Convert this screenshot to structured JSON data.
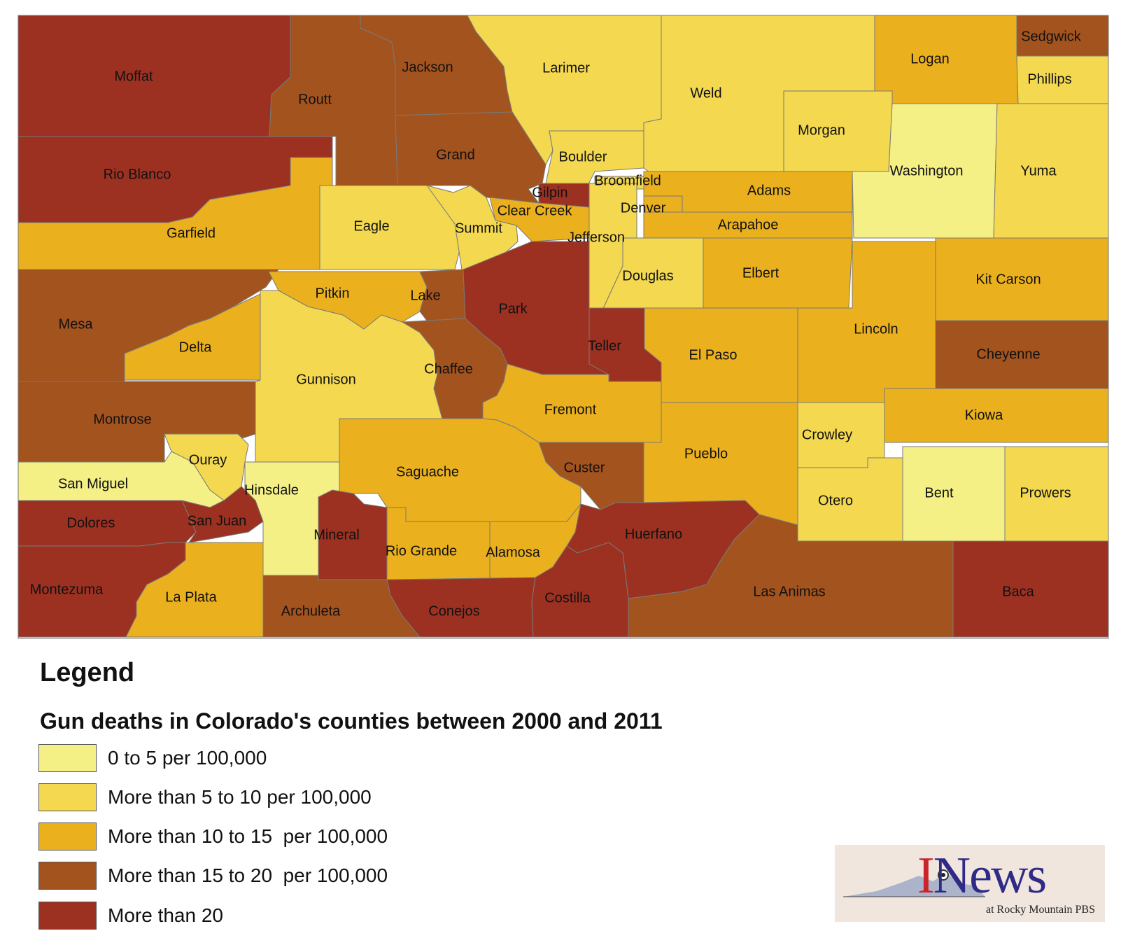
{
  "legend": {
    "heading": "Legend",
    "subtitle": "Gun deaths in Colorado's counties between 2000 and 2011",
    "categories": [
      {
        "label": "0 to 5 per 100,000",
        "color": "#f4f086"
      },
      {
        "label": "More than 5 to 10 per 100,000",
        "color": "#f3d850"
      },
      {
        "label": "More than 10 to 15  per 100,000",
        "color": "#ebb01d"
      },
      {
        "label": "More than 15 to 20  per 100,000",
        "color": "#a3531e"
      },
      {
        "label": "More than 20",
        "color": "#9c3122"
      }
    ]
  },
  "logo": {
    "main": "News",
    "initial": "I",
    "subtitle": "at Rocky Mountain PBS"
  },
  "counties": [
    {
      "name": "Moffat",
      "category": 4
    },
    {
      "name": "Routt",
      "category": 3
    },
    {
      "name": "Jackson",
      "category": 3
    },
    {
      "name": "Larimer",
      "category": 1
    },
    {
      "name": "Weld",
      "category": 1
    },
    {
      "name": "Logan",
      "category": 2
    },
    {
      "name": "Sedgwick",
      "category": 3
    },
    {
      "name": "Phillips",
      "category": 1
    },
    {
      "name": "Rio Blanco",
      "category": 4
    },
    {
      "name": "Grand",
      "category": 3
    },
    {
      "name": "Boulder",
      "category": 1
    },
    {
      "name": "Morgan",
      "category": 1
    },
    {
      "name": "Washington",
      "category": 0
    },
    {
      "name": "Yuma",
      "category": 1
    },
    {
      "name": "Broomfield",
      "category": 1
    },
    {
      "name": "Gilpin",
      "category": 4
    },
    {
      "name": "Adams",
      "category": 2
    },
    {
      "name": "Clear Creek",
      "category": 2
    },
    {
      "name": "Denver",
      "category": 2
    },
    {
      "name": "Garfield",
      "category": 2
    },
    {
      "name": "Eagle",
      "category": 1
    },
    {
      "name": "Summit",
      "category": 1
    },
    {
      "name": "Arapahoe",
      "category": 2
    },
    {
      "name": "Jefferson",
      "category": 1
    },
    {
      "name": "Douglas",
      "category": 1
    },
    {
      "name": "Elbert",
      "category": 2
    },
    {
      "name": "Kit Carson",
      "category": 2
    },
    {
      "name": "Mesa",
      "category": 3
    },
    {
      "name": "Pitkin",
      "category": 2
    },
    {
      "name": "Lake",
      "category": 3
    },
    {
      "name": "Park",
      "category": 4
    },
    {
      "name": "Delta",
      "category": 2
    },
    {
      "name": "Teller",
      "category": 4
    },
    {
      "name": "Lincoln",
      "category": 2
    },
    {
      "name": "El Paso",
      "category": 2
    },
    {
      "name": "Cheyenne",
      "category": 3
    },
    {
      "name": "Gunnison",
      "category": 1
    },
    {
      "name": "Chaffee",
      "category": 3
    },
    {
      "name": "Fremont",
      "category": 2
    },
    {
      "name": "Montrose",
      "category": 3
    },
    {
      "name": "Kiowa",
      "category": 2
    },
    {
      "name": "Crowley",
      "category": 1
    },
    {
      "name": "Ouray",
      "category": 1
    },
    {
      "name": "Pueblo",
      "category": 2
    },
    {
      "name": "Custer",
      "category": 3
    },
    {
      "name": "Saguache",
      "category": 2
    },
    {
      "name": "San Miguel",
      "category": 0
    },
    {
      "name": "Hinsdale",
      "category": 0
    },
    {
      "name": "Otero",
      "category": 1
    },
    {
      "name": "Bent",
      "category": 0
    },
    {
      "name": "Prowers",
      "category": 1
    },
    {
      "name": "Dolores",
      "category": 4
    },
    {
      "name": "San Juan",
      "category": 4
    },
    {
      "name": "Mineral",
      "category": 4
    },
    {
      "name": "Huerfano",
      "category": 4
    },
    {
      "name": "Rio Grande",
      "category": 2
    },
    {
      "name": "Alamosa",
      "category": 2
    },
    {
      "name": "Montezuma",
      "category": 4
    },
    {
      "name": "La Plata",
      "category": 2
    },
    {
      "name": "Archuleta",
      "category": 3
    },
    {
      "name": "Conejos",
      "category": 4
    },
    {
      "name": "Costilla",
      "category": 4
    },
    {
      "name": "Las Animas",
      "category": 3
    },
    {
      "name": "Baca",
      "category": 4
    }
  ]
}
